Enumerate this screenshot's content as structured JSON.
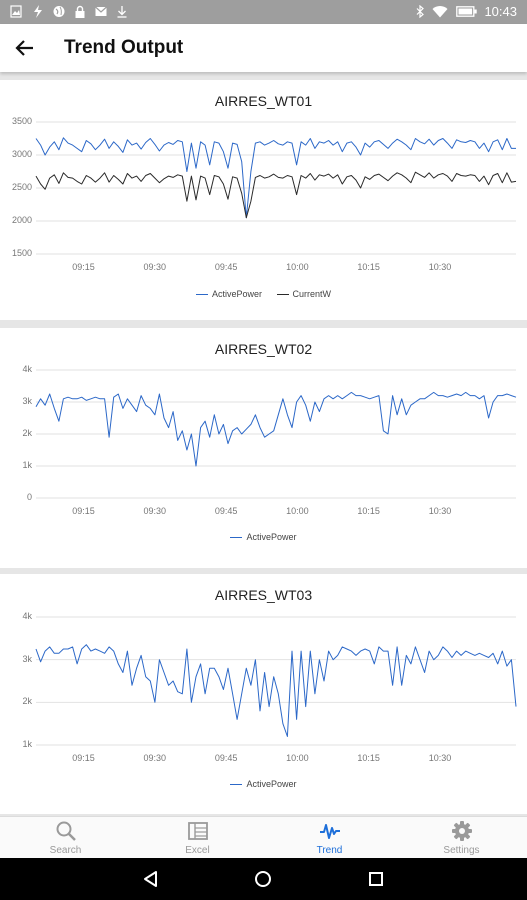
{
  "status_bar": {
    "time": "10:43",
    "left_icons": [
      "image-icon",
      "bolt-icon",
      "globe-icon",
      "lock-icon",
      "mail-icon",
      "download-icon"
    ],
    "right_icons": [
      "bluetooth-icon",
      "wifi-icon",
      "battery-icon"
    ]
  },
  "app_bar": {
    "title": "Trend Output"
  },
  "colors": {
    "active_power": "#2c68c8",
    "current_w": "#2a2a2a",
    "accent": "#1e6fd9"
  },
  "charts": [
    {
      "title": "AIRRES_WT01",
      "legend": [
        "ActivePower",
        "CurrentW"
      ]
    },
    {
      "title": "AIRRES_WT02",
      "legend": [
        "ActivePower"
      ]
    },
    {
      "title": "AIRRES_WT03",
      "legend": [
        "ActivePower"
      ]
    }
  ],
  "chart_data": [
    {
      "type": "line",
      "title": "AIRRES_WT01",
      "x_start": "09:05",
      "x_end": "10:46",
      "xticks": [
        "09:15",
        "09:30",
        "09:45",
        "10:00",
        "10:15",
        "10:30"
      ],
      "yticks": [
        "1500",
        "2000",
        "2500",
        "3000",
        "3500"
      ],
      "ylim": [
        1500,
        3500
      ],
      "grid": true,
      "legend_position": "bottom",
      "series": [
        {
          "name": "ActivePower",
          "values": [
            3250,
            3150,
            3000,
            3120,
            3200,
            3080,
            3260,
            3180,
            3150,
            3100,
            3050,
            3220,
            3170,
            3080,
            3150,
            3240,
            3100,
            3200,
            3130,
            3040,
            3230,
            3150,
            3180,
            3090,
            3190,
            3250,
            3160,
            3060,
            3150,
            3190,
            3160,
            3220,
            3200,
            2750,
            3180,
            2800,
            3200,
            3150,
            2850,
            3200,
            3180,
            3050,
            2800,
            3180,
            3160,
            2900,
            2050,
            2750,
            3180,
            3200,
            3150,
            3180,
            3220,
            3170,
            3150,
            3200,
            3180,
            2850,
            3200,
            3150,
            3250,
            3100,
            3200,
            3180,
            3220,
            3150,
            3200,
            3050,
            3180,
            3200,
            3120,
            3000,
            3180,
            3120,
            3200,
            3220,
            3160,
            3100,
            3180,
            3240,
            3200,
            3150,
            3080,
            3250,
            3200,
            3170,
            3240,
            3150,
            3220,
            3250,
            3180,
            3100,
            3230,
            3200,
            3190,
            3220,
            3200,
            3100,
            3180,
            3050,
            3200,
            3230,
            3080,
            3250,
            3100,
            3100
          ]
        },
        {
          "name": "CurrentW",
          "values": [
            2680,
            2560,
            2480,
            2650,
            2700,
            2570,
            2730,
            2660,
            2650,
            2600,
            2560,
            2690,
            2650,
            2590,
            2650,
            2730,
            2590,
            2690,
            2630,
            2560,
            2720,
            2650,
            2680,
            2600,
            2690,
            2720,
            2650,
            2580,
            2640,
            2680,
            2660,
            2700,
            2680,
            2300,
            2680,
            2320,
            2680,
            2650,
            2400,
            2690,
            2670,
            2560,
            2330,
            2670,
            2650,
            2420,
            2050,
            2300,
            2660,
            2690,
            2650,
            2670,
            2710,
            2660,
            2650,
            2690,
            2670,
            2400,
            2690,
            2650,
            2720,
            2620,
            2700,
            2680,
            2710,
            2650,
            2700,
            2560,
            2670,
            2690,
            2620,
            2500,
            2670,
            2630,
            2690,
            2710,
            2660,
            2610,
            2680,
            2730,
            2700,
            2650,
            2580,
            2740,
            2700,
            2660,
            2730,
            2650,
            2700,
            2720,
            2680,
            2600,
            2720,
            2690,
            2680,
            2700,
            2690,
            2600,
            2680,
            2550,
            2690,
            2720,
            2580,
            2730,
            2590,
            2600
          ]
        }
      ]
    },
    {
      "type": "line",
      "title": "AIRRES_WT02",
      "x_start": "09:05",
      "x_end": "10:46",
      "xticks": [
        "09:15",
        "09:30",
        "09:45",
        "10:00",
        "10:15",
        "10:30"
      ],
      "yticks": [
        "0",
        "1k",
        "2k",
        "3k",
        "4k"
      ],
      "ylim": [
        0,
        4000
      ],
      "grid": true,
      "legend_position": "bottom",
      "series": [
        {
          "name": "ActivePower",
          "values": [
            2850,
            3100,
            2900,
            3250,
            2800,
            2400,
            3100,
            3150,
            3100,
            3100,
            3150,
            3050,
            3100,
            3150,
            3100,
            3100,
            1900,
            3150,
            3250,
            2800,
            3100,
            2900,
            2700,
            3200,
            2900,
            2800,
            2600,
            3250,
            2500,
            2200,
            2700,
            1800,
            2100,
            1500,
            2000,
            1000,
            2200,
            2400,
            1900,
            2600,
            2000,
            2300,
            1700,
            2100,
            2200,
            2000,
            2150,
            2300,
            2600,
            2200,
            1900,
            2000,
            2100,
            2600,
            3100,
            2600,
            2200,
            3000,
            3200,
            2900,
            2400,
            3000,
            2700,
            3100,
            3200,
            3100,
            3200,
            3100,
            3200,
            3300,
            3200,
            3200,
            3150,
            3100,
            3150,
            3200,
            2100,
            2000,
            3200,
            2600,
            3100,
            2600,
            2900,
            3000,
            3100,
            3100,
            3200,
            3300,
            3200,
            3200,
            3150,
            3200,
            3250,
            3200,
            3300,
            3200,
            3200,
            3100,
            3200,
            2500,
            3000,
            3200,
            3200,
            3250,
            3200,
            3150
          ]
        }
      ]
    },
    {
      "type": "line",
      "title": "AIRRES_WT03",
      "x_start": "09:05",
      "x_end": "10:46",
      "xticks": [
        "09:15",
        "09:30",
        "09:45",
        "10:00",
        "10:15",
        "10:30"
      ],
      "yticks": [
        "1k",
        "2k",
        "3k",
        "4k"
      ],
      "ylim": [
        1000,
        4000
      ],
      "grid": true,
      "legend_position": "bottom",
      "series": [
        {
          "name": "ActivePower",
          "values": [
            3250,
            2950,
            3200,
            3300,
            3150,
            3150,
            3250,
            3250,
            3300,
            2900,
            3250,
            3350,
            3200,
            3250,
            3200,
            3150,
            3300,
            3200,
            2900,
            2700,
            3200,
            2400,
            2800,
            3100,
            2600,
            2500,
            2000,
            3000,
            2700,
            2400,
            2500,
            2250,
            2200,
            3250,
            2000,
            2600,
            2900,
            2200,
            2800,
            2800,
            2600,
            2300,
            2800,
            2200,
            1600,
            2200,
            2800,
            2400,
            3000,
            1800,
            2700,
            1900,
            2600,
            2200,
            1500,
            1200,
            3200,
            1600,
            3200,
            1900,
            3200,
            2200,
            3000,
            2500,
            3200,
            3000,
            3100,
            3300,
            3250,
            3200,
            3100,
            3200,
            3250,
            3200,
            2900,
            3300,
            3200,
            3200,
            2400,
            3300,
            2400,
            3100,
            2900,
            3300,
            3000,
            2700,
            3200,
            3000,
            3100,
            3300,
            3200,
            3050,
            3200,
            3100,
            3200,
            3150,
            3100,
            3150,
            3100,
            3050,
            3150,
            2900,
            3200,
            2850,
            3000,
            1900
          ]
        }
      ]
    }
  ],
  "bottom_nav": {
    "items": [
      {
        "label": "Search",
        "icon": "search-icon",
        "active": false
      },
      {
        "label": "Excel",
        "icon": "spreadsheet-icon",
        "active": false
      },
      {
        "label": "Trend",
        "icon": "trend-icon",
        "active": true
      },
      {
        "label": "Settings",
        "icon": "gear-icon",
        "active": false
      }
    ]
  },
  "system_nav": {
    "buttons": [
      "back-triangle-icon",
      "home-circle-icon",
      "recents-square-icon"
    ]
  }
}
